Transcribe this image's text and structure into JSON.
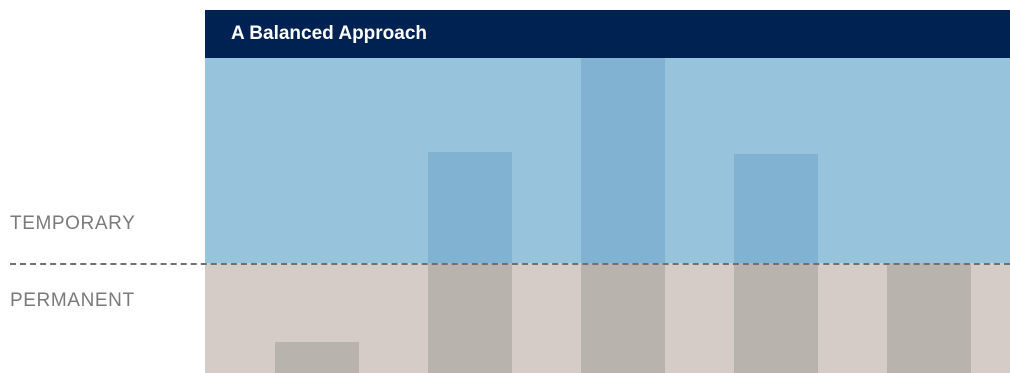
{
  "header": {
    "title": "A Balanced Approach"
  },
  "labels": {
    "temporary": "TEMPORARY",
    "permanent": "PERMANENT"
  },
  "colors": {
    "header_bg": "#002252",
    "temporary_bg": "#97c3dd",
    "temporary_bar": "#81b2d1",
    "permanent_bg": "#d5ccc7",
    "permanent_bar": "#b8b3ad",
    "divider": "#707070",
    "label_text": "#7a7a7a"
  },
  "bars": [
    {
      "temporary_level": 0.0,
      "permanent_level": 0.28
    },
    {
      "temporary_level": 0.54,
      "permanent_level": 1.0
    },
    {
      "temporary_level": 1.0,
      "permanent_level": 1.0
    },
    {
      "temporary_level": 0.53,
      "permanent_level": 1.0
    },
    {
      "temporary_level": 0.0,
      "permanent_level": 1.0
    }
  ]
}
